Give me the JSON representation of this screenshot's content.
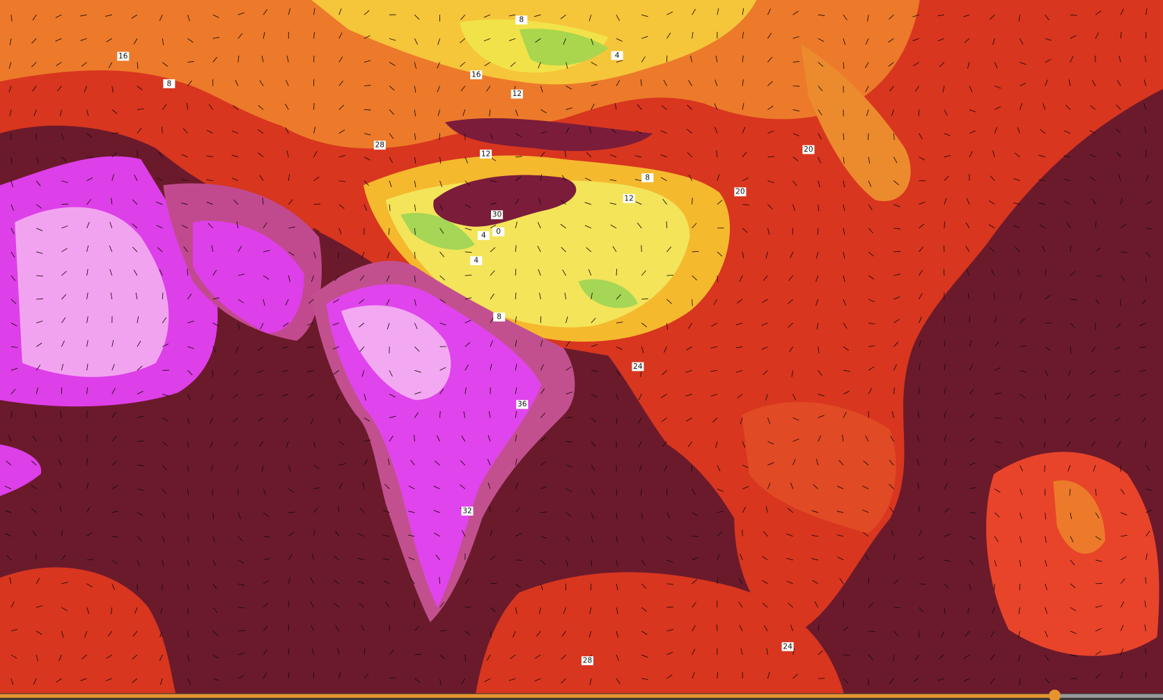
{
  "map": {
    "contour_labels": [
      {
        "text": "16"
      },
      {
        "text": "8"
      },
      {
        "text": "8"
      },
      {
        "text": "4"
      },
      {
        "text": "16"
      },
      {
        "text": "12"
      },
      {
        "text": "12"
      },
      {
        "text": "20"
      },
      {
        "text": "8"
      },
      {
        "text": "12"
      },
      {
        "text": "4"
      },
      {
        "text": "0"
      },
      {
        "text": "4"
      },
      {
        "text": "8"
      },
      {
        "text": "28"
      },
      {
        "text": "24"
      },
      {
        "text": "28"
      },
      {
        "text": "30"
      },
      {
        "text": "32"
      },
      {
        "text": "36"
      },
      {
        "text": "24"
      },
      {
        "text": "20"
      }
    ]
  }
}
